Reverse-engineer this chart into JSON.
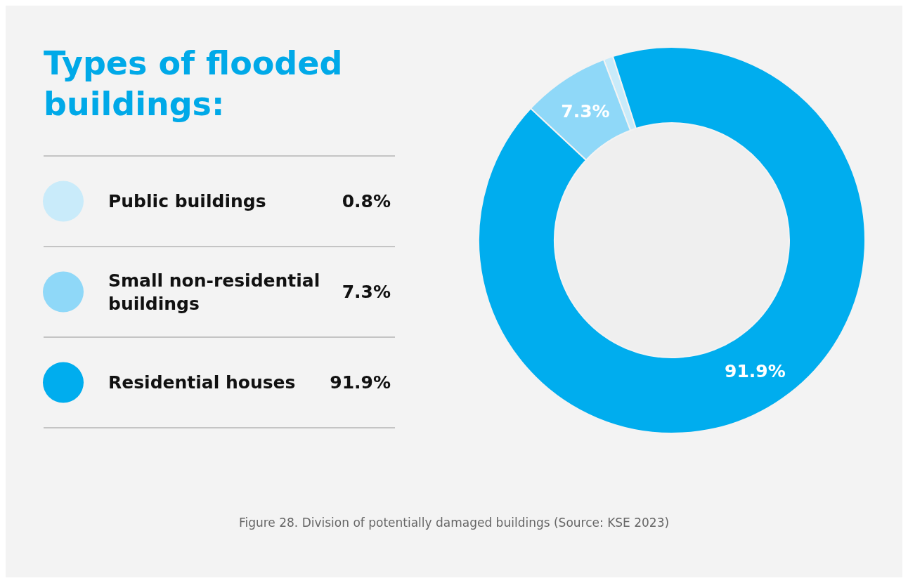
{
  "chart_data": {
    "type": "donut",
    "title": "Types of flooded buildings:",
    "categories": [
      "Public buildings",
      "Small non-residential buildings",
      "Residential houses"
    ],
    "values": [
      0.8,
      7.3,
      91.9
    ],
    "colors": [
      "#c9ebfa",
      "#8fd8f8",
      "#00adee"
    ],
    "value_labels": [
      "0.8%",
      "7.3%",
      "91.9%"
    ],
    "legend": "left",
    "annotations": [
      "Figure 28. Division of potentially damaged buildings (Source: KSE 2023)"
    ]
  }
}
